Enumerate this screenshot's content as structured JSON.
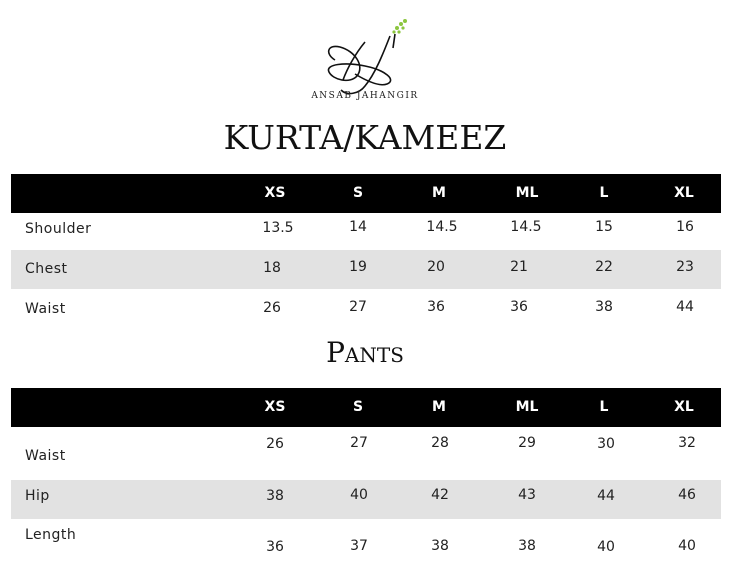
{
  "brand": {
    "name": "ANSAB JAHANGIR",
    "logo_icon": "script-aj-monogram-with-leaves",
    "leaf_color": "#8cc63f"
  },
  "kurta": {
    "title": "KURTA/KAMEEZ",
    "columns": [
      "XS",
      "S",
      "M",
      "ML",
      "L",
      "XL"
    ],
    "rows": [
      {
        "label": "Shoulder",
        "values": [
          "13.5",
          "14",
          "14.5",
          "14.5",
          "15",
          "16"
        ]
      },
      {
        "label": "Chest",
        "values": [
          "18",
          "19",
          "20",
          "21",
          "22",
          "23"
        ]
      },
      {
        "label": "Waist",
        "values": [
          "26",
          "27",
          "36",
          "36",
          "38",
          "44"
        ]
      }
    ]
  },
  "pants": {
    "title": "Pants",
    "columns": [
      "XS",
      "S",
      "M",
      "ML",
      "L",
      "XL"
    ],
    "rows": [
      {
        "label": "Waist",
        "values": [
          "26",
          "27",
          "28",
          "29",
          "30",
          "32"
        ]
      },
      {
        "label": "Hip",
        "values": [
          "38",
          "40",
          "42",
          "43",
          "44",
          "46"
        ]
      },
      {
        "label": "Length",
        "values": [
          "36",
          "37",
          "38",
          "38",
          "40",
          "40"
        ]
      }
    ]
  }
}
